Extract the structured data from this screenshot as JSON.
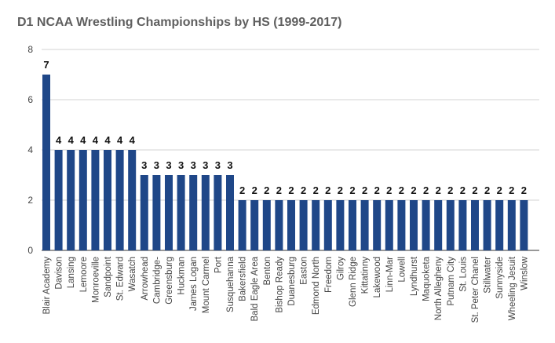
{
  "chart_data": {
    "type": "bar",
    "title": "D1 NCAA Wrestling Championships by HS (1999-2017)",
    "xlabel": "",
    "ylabel": "",
    "ylim": [
      0,
      8
    ],
    "yticks": [
      0,
      2,
      4,
      6,
      8
    ],
    "grid": true,
    "bar_color": "#1f4788",
    "categories": [
      "Blair Academy",
      "Davison",
      "Lansing",
      "Lemoore",
      "Monroeville",
      "Sandpoint",
      "St. Edward",
      "Wasatch",
      "Arrowhead",
      "Cambridge-",
      "Greensburg",
      "Huckman",
      "James Logan",
      "Mount Carmel",
      "Port",
      "Susquehanna",
      "Bakersfield",
      "Bald Eagle Area",
      "Benton",
      "Bishop Ready",
      "Duanesburg",
      "Easton",
      "Edmond North",
      "Freedom",
      "Gilroy",
      "Glenn Ridge",
      "Kittatinny",
      "Lakewood",
      "Linn-Mar",
      "Lowell",
      "Lyndhurst",
      "Maquoketa",
      "North Allegheny",
      "Putnam City",
      "St. Louis",
      "St. Peter Chanel",
      "Stillwater",
      "Sunnyside",
      "Wheeling Jesuit",
      "Winslow"
    ],
    "values": [
      7,
      4,
      4,
      4,
      4,
      4,
      4,
      4,
      3,
      3,
      3,
      3,
      3,
      3,
      3,
      3,
      2,
      2,
      2,
      2,
      2,
      2,
      2,
      2,
      2,
      2,
      2,
      2,
      2,
      2,
      2,
      2,
      2,
      2,
      2,
      2,
      2,
      2,
      2,
      2
    ]
  }
}
